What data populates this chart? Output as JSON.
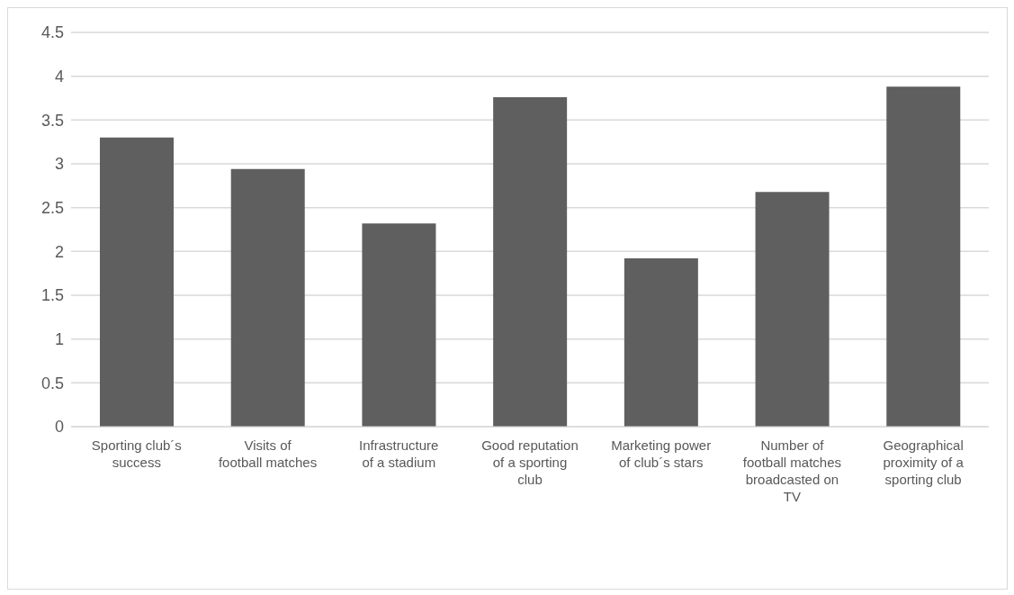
{
  "chart_data": {
    "type": "bar",
    "categories": [
      "Sporting club´s success",
      "Visits of football matches",
      "Infrastructure of a stadium",
      "Good reputation of a sporting club",
      "Marketing power of club´s stars",
      "Number of football matches broadcasted on TV",
      "Geographical proximity of a sporting club"
    ],
    "values": [
      3.3,
      2.94,
      2.32,
      3.76,
      1.92,
      2.68,
      3.88
    ],
    "color": "#5f5f5f",
    "ylim": [
      0,
      4.5
    ],
    "yticks": [
      0,
      0.5,
      1,
      1.5,
      2,
      2.5,
      3,
      3.5,
      4,
      4.5
    ],
    "grid": "y"
  }
}
